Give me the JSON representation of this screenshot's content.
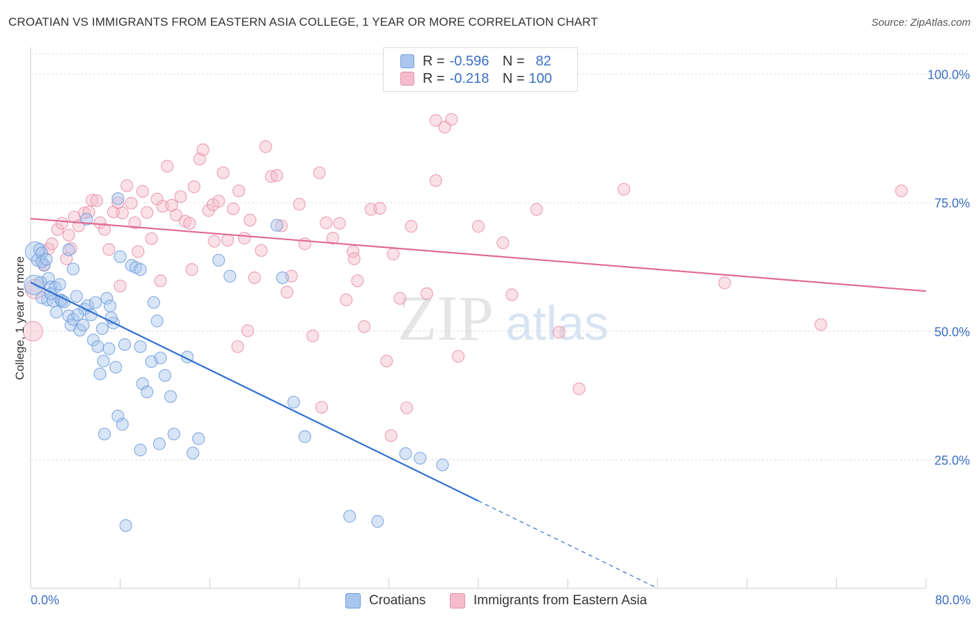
{
  "header": {
    "title": "CROATIAN VS IMMIGRANTS FROM EASTERN ASIA COLLEGE, 1 YEAR OR MORE CORRELATION CHART",
    "source": "Source: ZipAtlas.com"
  },
  "legend": {
    "rows": [
      {
        "r_label": "R =",
        "r_value": "-0.596",
        "n_label": "N =",
        "n_value": "82"
      },
      {
        "r_label": "R =",
        "r_value": "-0.218",
        "n_label": "N =",
        "n_value": "100"
      }
    ]
  },
  "watermark": {
    "zip": "ZIP",
    "atlas": "atlas"
  },
  "colors": {
    "blue_fill": "#a9c6ee",
    "blue_stroke": "#6f9edb",
    "blue_line": "#2f6fd0",
    "pink_fill": "#f4bccd",
    "pink_stroke": "#e88ea9",
    "pink_line": "#e06a93",
    "grid": "#dcdcdc",
    "axis_text": "#3a6fc4"
  },
  "chart_data": {
    "type": "scatter",
    "title": "CROATIAN VS IMMIGRANTS FROM EASTERN ASIA COLLEGE, 1 YEAR OR MORE CORRELATION CHART",
    "xlabel": "",
    "ylabel": "College, 1 year or more",
    "xlim": [
      0,
      80
    ],
    "ylim": [
      0,
      104
    ],
    "x_tick_labels": [
      "0.0%",
      "80.0%"
    ],
    "y_ticks": [
      25,
      50,
      75,
      100
    ],
    "y_tick_labels": [
      "25.0%",
      "50.0%",
      "75.0%",
      "100.0%"
    ],
    "grid": true,
    "legend_position": "top-center",
    "series": [
      {
        "name": "Croatians",
        "color": "#a9c6ee",
        "r": -0.596,
        "n": 82,
        "trend": {
          "x0": 0.0,
          "y0": 59.5,
          "x1": 40.0,
          "y1": 17.0,
          "dash_to_x": 56.0,
          "dash_to_y": 0.0
        },
        "points": [
          [
            0.4,
            65.5
          ],
          [
            0.6,
            63.8
          ],
          [
            0.8,
            65.9
          ],
          [
            1.0,
            65.2
          ],
          [
            1.2,
            62.9
          ],
          [
            1.0,
            63.5
          ],
          [
            1.4,
            64.0
          ],
          [
            1.6,
            60.3
          ],
          [
            1.8,
            58.6
          ],
          [
            0.9,
            59.5
          ],
          [
            1.5,
            56.1
          ],
          [
            2.0,
            55.9
          ],
          [
            2.3,
            53.7
          ],
          [
            2.7,
            56.1
          ],
          [
            2.8,
            55.9
          ],
          [
            3.0,
            55.7
          ],
          [
            3.4,
            53.0
          ],
          [
            3.6,
            51.2
          ],
          [
            3.8,
            52.3
          ],
          [
            4.1,
            56.8
          ],
          [
            4.4,
            50.2
          ],
          [
            4.7,
            51.2
          ],
          [
            4.8,
            54.3
          ],
          [
            5.1,
            55.0
          ],
          [
            5.4,
            53.2
          ],
          [
            5.6,
            48.3
          ],
          [
            5.8,
            55.6
          ],
          [
            6.0,
            47.0
          ],
          [
            6.4,
            50.5
          ],
          [
            6.8,
            56.4
          ],
          [
            7.1,
            54.9
          ],
          [
            7.4,
            51.6
          ],
          [
            7.6,
            43.0
          ],
          [
            6.2,
            41.7
          ],
          [
            6.5,
            44.2
          ],
          [
            7.0,
            46.6
          ],
          [
            8.0,
            64.5
          ],
          [
            8.4,
            47.4
          ],
          [
            9.0,
            62.8
          ],
          [
            9.4,
            62.4
          ],
          [
            9.8,
            62.0
          ],
          [
            10.0,
            39.8
          ],
          [
            10.4,
            38.2
          ],
          [
            10.8,
            44.1
          ],
          [
            11.0,
            55.6
          ],
          [
            11.3,
            52.0
          ],
          [
            11.6,
            44.8
          ],
          [
            12.0,
            41.4
          ],
          [
            12.5,
            37.3
          ],
          [
            2.2,
            58.5
          ],
          [
            3.8,
            62.1
          ],
          [
            1.0,
            56.5
          ],
          [
            1.8,
            57.3
          ],
          [
            2.6,
            59.1
          ],
          [
            7.8,
            33.5
          ],
          [
            8.2,
            31.9
          ],
          [
            6.6,
            30.0
          ],
          [
            9.8,
            26.9
          ],
          [
            11.5,
            28.1
          ],
          [
            12.8,
            30.0
          ],
          [
            14.5,
            26.3
          ],
          [
            15.0,
            29.1
          ],
          [
            16.8,
            63.8
          ],
          [
            17.8,
            60.7
          ],
          [
            22.0,
            70.6
          ],
          [
            22.5,
            60.4
          ],
          [
            23.5,
            36.2
          ],
          [
            24.5,
            29.5
          ],
          [
            28.5,
            14.0
          ],
          [
            31.0,
            13.0
          ],
          [
            33.5,
            26.2
          ],
          [
            34.8,
            25.3
          ],
          [
            36.8,
            24.0
          ],
          [
            8.5,
            12.2
          ],
          [
            5.0,
            71.8
          ],
          [
            7.8,
            75.8
          ],
          [
            3.4,
            65.8
          ],
          [
            4.2,
            53.2
          ],
          [
            7.2,
            52.6
          ],
          [
            9.8,
            47.0
          ],
          [
            0.3,
            59.0
          ],
          [
            14.0,
            45.0
          ]
        ]
      },
      {
        "name": "Immigrants from Eastern Asia",
        "color": "#f4bccd",
        "r": -0.218,
        "n": 100,
        "trend": {
          "x0": 0.0,
          "y0": 71.9,
          "x1": 80.0,
          "y1": 57.8
        },
        "points": [
          [
            0.2,
            50.0
          ],
          [
            0.4,
            58.2
          ],
          [
            1.2,
            62.8
          ],
          [
            1.6,
            66.0
          ],
          [
            1.9,
            67.0
          ],
          [
            2.4,
            69.8
          ],
          [
            2.8,
            71.0
          ],
          [
            3.2,
            64.1
          ],
          [
            3.4,
            68.7
          ],
          [
            3.6,
            66.1
          ],
          [
            3.9,
            72.2
          ],
          [
            4.3,
            70.5
          ],
          [
            4.8,
            73.0
          ],
          [
            5.2,
            73.2
          ],
          [
            5.5,
            75.5
          ],
          [
            5.9,
            75.4
          ],
          [
            6.2,
            71.1
          ],
          [
            6.6,
            69.8
          ],
          [
            7.0,
            65.9
          ],
          [
            7.4,
            73.2
          ],
          [
            7.8,
            75.0
          ],
          [
            8.2,
            73.0
          ],
          [
            8.6,
            78.3
          ],
          [
            9.0,
            74.9
          ],
          [
            9.3,
            71.1
          ],
          [
            9.6,
            65.5
          ],
          [
            10.0,
            77.2
          ],
          [
            10.4,
            73.1
          ],
          [
            10.8,
            68.0
          ],
          [
            11.3,
            75.7
          ],
          [
            11.8,
            74.3
          ],
          [
            12.2,
            82.1
          ],
          [
            12.6,
            74.5
          ],
          [
            13.0,
            72.6
          ],
          [
            13.4,
            76.2
          ],
          [
            13.8,
            71.4
          ],
          [
            14.2,
            71.0
          ],
          [
            14.6,
            78.1
          ],
          [
            15.1,
            83.5
          ],
          [
            15.4,
            85.3
          ],
          [
            15.9,
            73.5
          ],
          [
            16.3,
            74.6
          ],
          [
            16.8,
            75.3
          ],
          [
            17.2,
            80.8
          ],
          [
            17.6,
            67.7
          ],
          [
            18.1,
            73.8
          ],
          [
            18.6,
            77.3
          ],
          [
            19.1,
            68.1
          ],
          [
            19.6,
            71.6
          ],
          [
            20.0,
            60.4
          ],
          [
            20.6,
            65.7
          ],
          [
            21.0,
            85.9
          ],
          [
            21.5,
            80.1
          ],
          [
            22.0,
            80.3
          ],
          [
            22.4,
            70.5
          ],
          [
            22.9,
            57.6
          ],
          [
            23.3,
            60.7
          ],
          [
            24.0,
            74.7
          ],
          [
            24.5,
            67.0
          ],
          [
            25.2,
            49.1
          ],
          [
            25.8,
            80.8
          ],
          [
            26.4,
            71.1
          ],
          [
            27.0,
            68.1
          ],
          [
            27.6,
            71.0
          ],
          [
            28.2,
            56.1
          ],
          [
            28.8,
            65.5
          ],
          [
            29.2,
            59.8
          ],
          [
            29.8,
            50.9
          ],
          [
            30.4,
            73.7
          ],
          [
            31.2,
            73.9
          ],
          [
            31.8,
            44.2
          ],
          [
            32.4,
            65.0
          ],
          [
            33.0,
            56.4
          ],
          [
            33.6,
            35.1
          ],
          [
            34.0,
            70.4
          ],
          [
            35.4,
            57.3
          ],
          [
            36.2,
            91.0
          ],
          [
            37.0,
            89.7
          ],
          [
            37.6,
            91.2
          ],
          [
            38.2,
            45.1
          ],
          [
            40.0,
            70.4
          ],
          [
            42.2,
            67.2
          ],
          [
            43.0,
            57.1
          ],
          [
            45.2,
            73.7
          ],
          [
            47.2,
            49.8
          ],
          [
            49.0,
            38.8
          ],
          [
            53.0,
            77.6
          ],
          [
            62.0,
            59.4
          ],
          [
            70.6,
            51.3
          ],
          [
            77.8,
            77.3
          ],
          [
            18.5,
            47.0
          ],
          [
            19.4,
            50.1
          ],
          [
            26.0,
            35.2
          ],
          [
            32.2,
            29.7
          ],
          [
            36.2,
            79.3
          ],
          [
            8.0,
            58.8
          ],
          [
            11.6,
            59.8
          ],
          [
            14.4,
            62.0
          ],
          [
            16.4,
            67.5
          ],
          [
            28.9,
            64.1
          ]
        ]
      }
    ]
  },
  "bottom_legend": {
    "items": [
      {
        "label": "Croatians"
      },
      {
        "label": "Immigrants from Eastern Asia"
      }
    ]
  }
}
